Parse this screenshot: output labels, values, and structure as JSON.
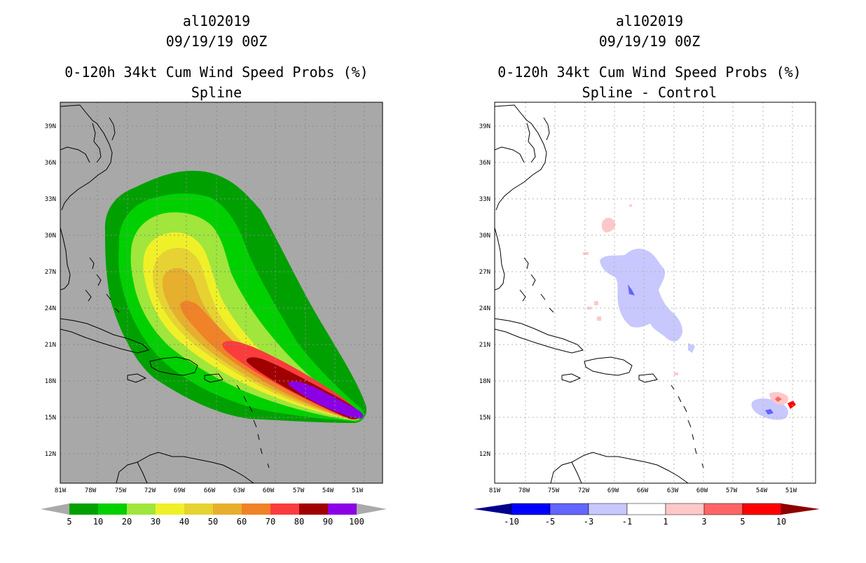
{
  "left": {
    "storm_id": "al102019",
    "datetime": "09/19/19 00Z",
    "title": "0-120h 34kt Cum Wind Speed Probs (%)",
    "subtitle": "Spline",
    "lat_ticks": [
      "39N",
      "36N",
      "33N",
      "30N",
      "27N",
      "24N",
      "21N",
      "18N",
      "15N",
      "12N"
    ],
    "lon_ticks": [
      "81W",
      "78W",
      "75W",
      "72W",
      "69W",
      "66W",
      "63W",
      "60W",
      "57W",
      "54W",
      "51W"
    ],
    "colorbar": {
      "labels": [
        "5",
        "10",
        "20",
        "30",
        "40",
        "50",
        "60",
        "70",
        "80",
        "90",
        "100"
      ],
      "colors": [
        "#00a000",
        "#00d000",
        "#a0e63c",
        "#f0f028",
        "#e6d232",
        "#e6af2d",
        "#f08228",
        "#fa3c3c",
        "#a00000",
        "#8c00e6"
      ],
      "under_color": "#aaaaaa",
      "over_color": "#aaaaaa"
    },
    "background_color": "#a8a8a8"
  },
  "right": {
    "storm_id": "al102019",
    "datetime": "09/19/19 00Z",
    "title": "0-120h 34kt Cum Wind Speed Probs (%)",
    "subtitle": "Spline - Control",
    "lat_ticks": [
      "39N",
      "36N",
      "33N",
      "30N",
      "27N",
      "24N",
      "21N",
      "18N",
      "15N",
      "12N"
    ],
    "lon_ticks": [
      "81W",
      "78W",
      "75W",
      "72W",
      "69W",
      "66W",
      "63W",
      "60W",
      "57W",
      "54W",
      "51W"
    ],
    "colorbar": {
      "labels": [
        "-10",
        "-5",
        "-3",
        "-1",
        "1",
        "3",
        "5",
        "10"
      ],
      "colors": [
        "#0000ff",
        "#6464ff",
        "#c8c8ff",
        "#ffffff",
        "#ffc8c8",
        "#ff6464",
        "#ff0000"
      ],
      "under_color": "#00008c",
      "over_color": "#8c0000"
    },
    "background_color": "#ffffff"
  }
}
